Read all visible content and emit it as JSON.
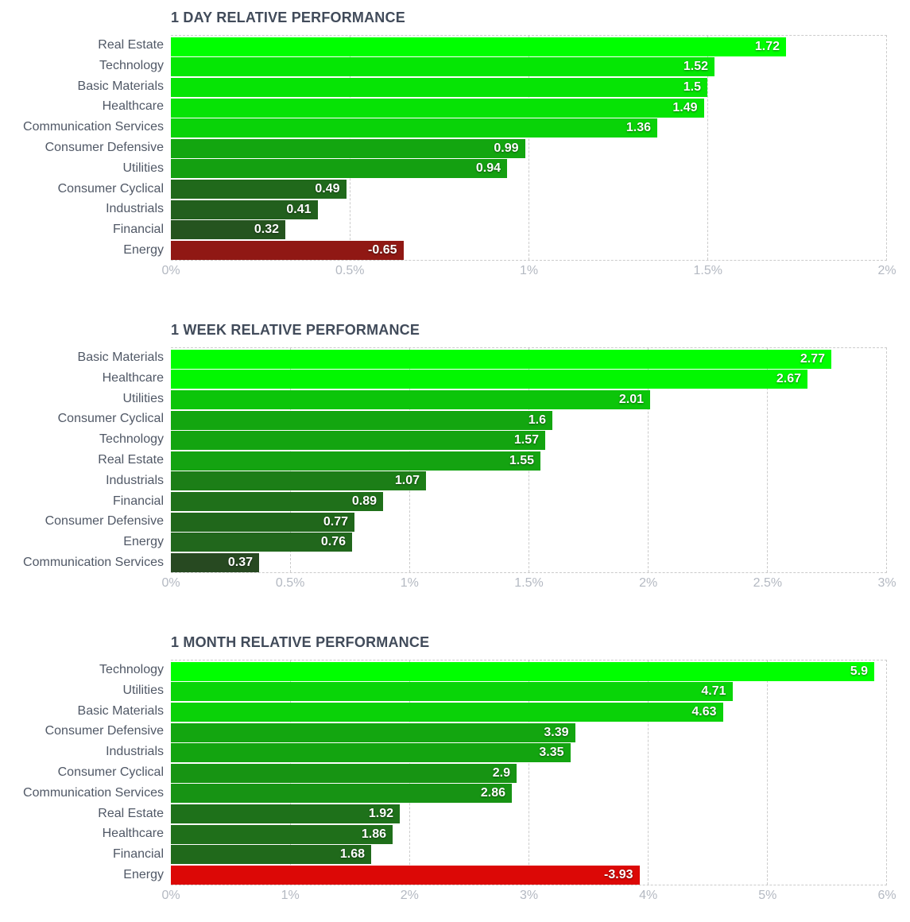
{
  "colors": {
    "background": "#ffffff",
    "title_text": "#414b5a",
    "category_text": "#505866",
    "tick_text": "#b4b9c2",
    "grid_line": "#cbcbcb",
    "value_text": "#ffffff",
    "bar_dark_base": "#2d2d26",
    "bar_positive_bright": "#00ff00",
    "bar_negative_bright": "#ff0000"
  },
  "chart_data": [
    {
      "type": "bar",
      "orientation": "horizontal",
      "title": "1 DAY RELATIVE PERFORMANCE",
      "categories": [
        "Real Estate",
        "Technology",
        "Basic Materials",
        "Healthcare",
        "Communication Services",
        "Consumer Defensive",
        "Utilities",
        "Consumer Cyclical",
        "Industrials",
        "Financial",
        "Energy"
      ],
      "values": [
        1.72,
        1.52,
        1.5,
        1.49,
        1.36,
        0.99,
        0.94,
        0.49,
        0.41,
        0.32,
        -0.65
      ],
      "value_labels": [
        "1.72",
        "1.52",
        "1.5",
        "1.49",
        "1.36",
        "0.99",
        "0.94",
        "0.49",
        "0.41",
        "0.32",
        "-0.65"
      ],
      "xlim": [
        0,
        2
      ],
      "tick_values": [
        0,
        0.5,
        1,
        1.5,
        2
      ],
      "tick_labels": [
        "0%",
        "0.5%",
        "1%",
        "1.5%",
        "2%"
      ],
      "grid": true,
      "legend": "none",
      "bars_use_absolute_value": true
    },
    {
      "type": "bar",
      "orientation": "horizontal",
      "title": "1 WEEK RELATIVE PERFORMANCE",
      "categories": [
        "Basic Materials",
        "Healthcare",
        "Utilities",
        "Consumer Cyclical",
        "Technology",
        "Real Estate",
        "Industrials",
        "Financial",
        "Consumer Defensive",
        "Energy",
        "Communication Services"
      ],
      "values": [
        2.77,
        2.67,
        2.01,
        1.6,
        1.57,
        1.55,
        1.07,
        0.89,
        0.77,
        0.76,
        0.37
      ],
      "value_labels": [
        "2.77",
        "2.67",
        "2.01",
        "1.6",
        "1.57",
        "1.55",
        "1.07",
        "0.89",
        "0.77",
        "0.76",
        "0.37"
      ],
      "xlim": [
        0,
        3
      ],
      "tick_values": [
        0,
        0.5,
        1,
        1.5,
        2,
        2.5,
        3
      ],
      "tick_labels": [
        "0%",
        "0.5%",
        "1%",
        "1.5%",
        "2%",
        "2.5%",
        "3%"
      ],
      "grid": true,
      "legend": "none",
      "bars_use_absolute_value": true
    },
    {
      "type": "bar",
      "orientation": "horizontal",
      "title": "1 MONTH RELATIVE PERFORMANCE",
      "categories": [
        "Technology",
        "Utilities",
        "Basic Materials",
        "Consumer Defensive",
        "Industrials",
        "Consumer Cyclical",
        "Communication Services",
        "Real Estate",
        "Healthcare",
        "Financial",
        "Energy"
      ],
      "values": [
        5.9,
        4.71,
        4.63,
        3.39,
        3.35,
        2.9,
        2.86,
        1.92,
        1.86,
        1.68,
        -3.93
      ],
      "value_labels": [
        "5.9",
        "4.71",
        "4.63",
        "3.39",
        "3.35",
        "2.9",
        "2.86",
        "1.92",
        "1.86",
        "1.68",
        "-3.93"
      ],
      "xlim": [
        0,
        6
      ],
      "tick_values": [
        0,
        1,
        2,
        3,
        4,
        5,
        6
      ],
      "tick_labels": [
        "0%",
        "1%",
        "2%",
        "3%",
        "4%",
        "5%",
        "6%"
      ],
      "grid": true,
      "legend": "none",
      "bars_use_absolute_value": true
    }
  ]
}
